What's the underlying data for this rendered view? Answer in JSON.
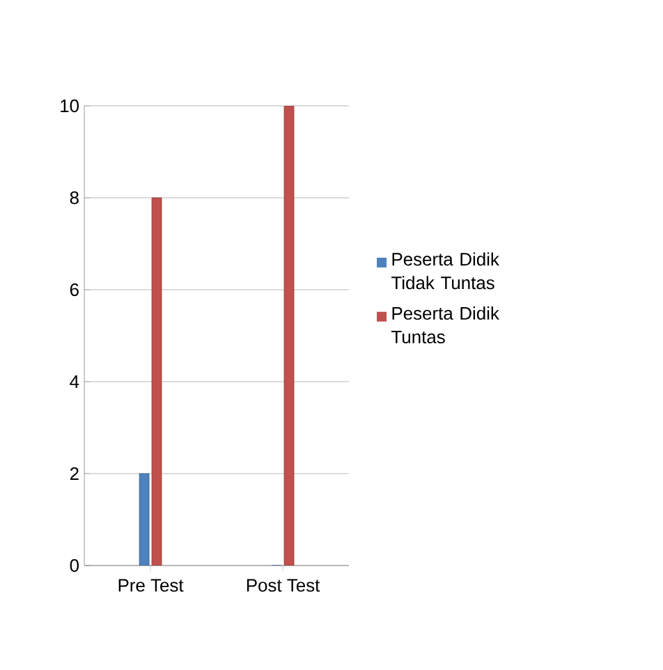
{
  "chart_data": {
    "type": "bar",
    "categories": [
      "Pre Test",
      "Post Test"
    ],
    "series": [
      {
        "name": "Peserta Didik Tidak Tuntas",
        "color": "#4f81bd",
        "values": [
          2,
          0
        ]
      },
      {
        "name": "Peserta Didik Tuntas",
        "color": "#c0504d",
        "values": [
          8,
          10
        ]
      }
    ],
    "ylim": [
      0,
      10
    ],
    "yticks": [
      0,
      2,
      4,
      6,
      8,
      10
    ],
    "grid": "y",
    "legend": "right"
  }
}
